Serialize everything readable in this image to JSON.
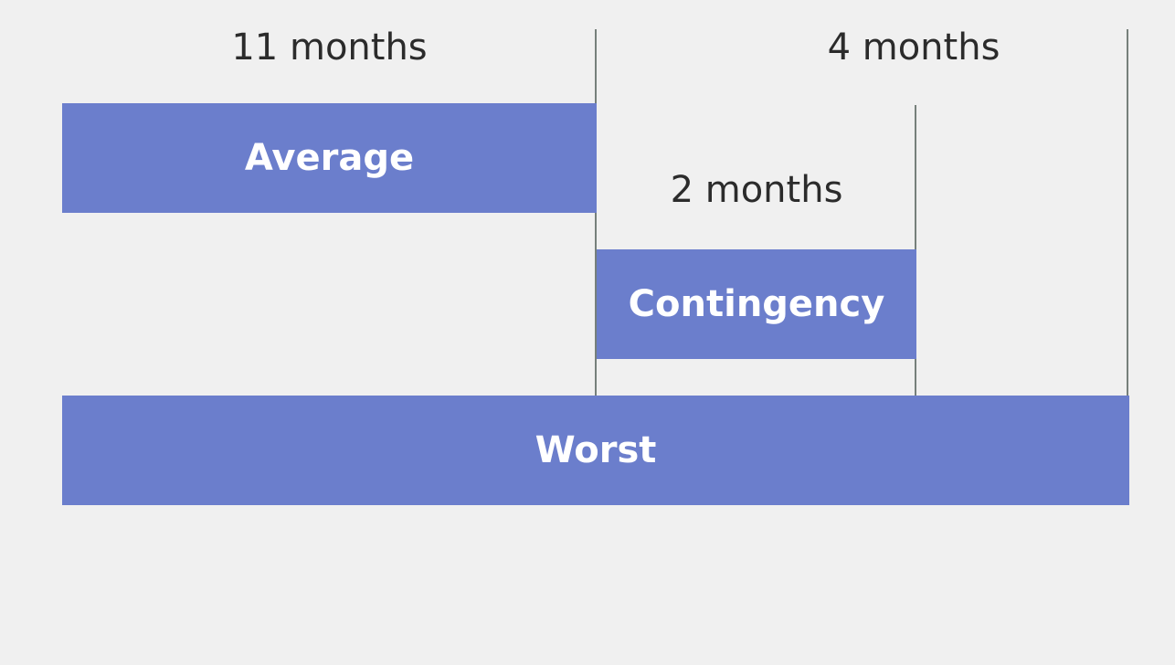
{
  "labels": {
    "average_duration": "11 months",
    "extra_duration": "4 months",
    "contingency_duration": "2 months"
  },
  "bars": {
    "average": "Average",
    "contingency": "Contingency",
    "worst": "Worst"
  },
  "colors": {
    "bar": "#6b7ecc",
    "background": "#f0f0f0",
    "divider": "#76807b",
    "text": "#2b2b2b"
  }
}
